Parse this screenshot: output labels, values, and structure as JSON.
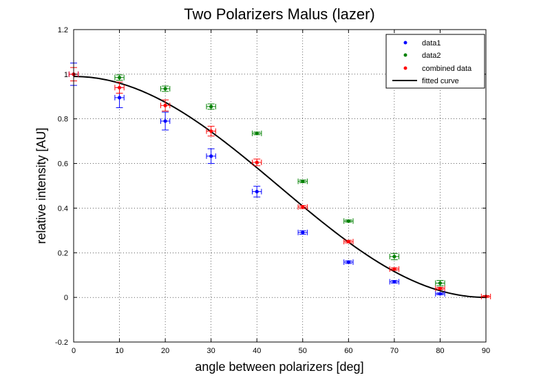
{
  "chart_data": {
    "type": "scatter",
    "title": "Two Polarizers Malus (lazer)",
    "xlabel": "angle between polarizers [deg]",
    "ylabel": "relative intensity [AU]",
    "xlim": [
      0,
      90
    ],
    "ylim": [
      -0.2,
      1.2
    ],
    "xticks": [
      0,
      10,
      20,
      30,
      40,
      50,
      60,
      70,
      80,
      90
    ],
    "yticks": [
      -0.2,
      0,
      0.2,
      0.4,
      0.6,
      0.8,
      1,
      1.2
    ],
    "ytick_labels": [
      "-0.2",
      "0",
      "0.2",
      "0.4",
      "0.6",
      "0.8",
      "1",
      "1.2"
    ],
    "grid": true,
    "legend_position": "top-right",
    "series": [
      {
        "name": "data1",
        "color": "#0000ff",
        "x": [
          0,
          10,
          20,
          30,
          40,
          50,
          60,
          70,
          80
        ],
        "y": [
          1.0,
          0.895,
          0.79,
          0.633,
          0.474,
          0.291,
          0.158,
          0.07,
          0.016
        ],
        "yerr": [
          0.05,
          0.045,
          0.04,
          0.033,
          0.024,
          0.008,
          0.006,
          0.006,
          0.004
        ],
        "xerr": [
          1,
          1,
          1,
          1,
          1,
          1,
          1,
          1,
          1
        ]
      },
      {
        "name": "data2",
        "color": "#008000",
        "x": [
          10,
          20,
          30,
          40,
          50,
          60,
          70,
          80
        ],
        "y": [
          0.985,
          0.935,
          0.855,
          0.735,
          0.52,
          0.342,
          0.183,
          0.064
        ],
        "yerr": [
          0.012,
          0.012,
          0.012,
          0.006,
          0.006,
          0.005,
          0.014,
          0.012
        ],
        "xerr": [
          1,
          1,
          1,
          1,
          1,
          1,
          1,
          1
        ]
      },
      {
        "name": "combined data",
        "color": "#ff0000",
        "x": [
          0,
          10,
          20,
          30,
          40,
          50,
          60,
          70,
          80,
          90
        ],
        "y": [
          1.0,
          0.94,
          0.86,
          0.745,
          0.605,
          0.405,
          0.25,
          0.127,
          0.04,
          0.004
        ],
        "yerr": [
          0.03,
          0.025,
          0.025,
          0.022,
          0.015,
          0.007,
          0.006,
          0.006,
          0.005,
          0.004
        ],
        "xerr": [
          1,
          1,
          1,
          1,
          1,
          1,
          1,
          1,
          1,
          1
        ]
      },
      {
        "name": "fitted curve",
        "color": "#000000",
        "type": "line",
        "function": "A*cos^2(x)",
        "amplitude": 0.99
      }
    ]
  }
}
